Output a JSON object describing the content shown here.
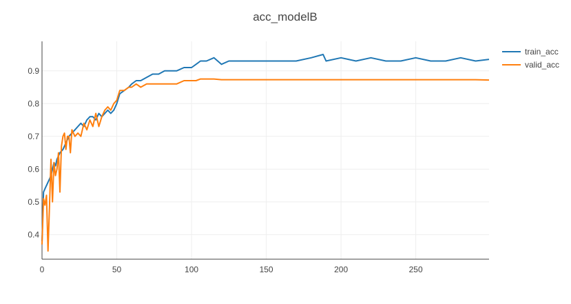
{
  "chart_data": {
    "type": "line",
    "title": "acc_modelB",
    "xlabel": "",
    "ylabel": "",
    "xlim": [
      0,
      299
    ],
    "ylim": [
      0.325,
      0.99
    ],
    "x_ticks": [
      0,
      50,
      100,
      150,
      200,
      250
    ],
    "y_ticks": [
      0.4,
      0.5,
      0.6,
      0.7,
      0.8,
      0.9
    ],
    "grid": true,
    "legend_position": "top-right",
    "series": [
      {
        "name": "train_acc",
        "color": "#1f77b4",
        "x": [
          0,
          1,
          2,
          3,
          4,
          5,
          6,
          7,
          8,
          9,
          10,
          12,
          14,
          16,
          18,
          20,
          22,
          24,
          26,
          28,
          30,
          32,
          34,
          36,
          38,
          40,
          42,
          44,
          46,
          48,
          50,
          52,
          55,
          58,
          60,
          63,
          66,
          70,
          74,
          78,
          82,
          86,
          90,
          95,
          100,
          103,
          106,
          110,
          115,
          120,
          125,
          130,
          140,
          150,
          160,
          170,
          180,
          188,
          190,
          200,
          210,
          220,
          230,
          240,
          250,
          260,
          270,
          280,
          290,
          299
        ],
        "y": [
          0.38,
          0.53,
          0.54,
          0.55,
          0.56,
          0.57,
          0.58,
          0.6,
          0.62,
          0.61,
          0.63,
          0.65,
          0.66,
          0.68,
          0.7,
          0.71,
          0.72,
          0.73,
          0.74,
          0.73,
          0.75,
          0.76,
          0.76,
          0.75,
          0.77,
          0.76,
          0.77,
          0.78,
          0.77,
          0.78,
          0.8,
          0.83,
          0.84,
          0.85,
          0.86,
          0.87,
          0.87,
          0.88,
          0.89,
          0.89,
          0.9,
          0.9,
          0.9,
          0.91,
          0.91,
          0.92,
          0.93,
          0.93,
          0.94,
          0.92,
          0.93,
          0.93,
          0.93,
          0.93,
          0.93,
          0.93,
          0.94,
          0.95,
          0.93,
          0.94,
          0.93,
          0.94,
          0.93,
          0.93,
          0.94,
          0.93,
          0.93,
          0.94,
          0.93,
          0.935
        ]
      },
      {
        "name": "valid_acc",
        "color": "#ff7f0e",
        "x": [
          0,
          1,
          2,
          3,
          4,
          5,
          6,
          7,
          8,
          9,
          10,
          11,
          12,
          13,
          14,
          15,
          16,
          17,
          18,
          19,
          20,
          22,
          24,
          26,
          28,
          30,
          32,
          34,
          36,
          38,
          40,
          42,
          44,
          46,
          48,
          50,
          52,
          55,
          58,
          60,
          63,
          66,
          70,
          74,
          78,
          82,
          86,
          90,
          95,
          100,
          103,
          106,
          110,
          115,
          120,
          130,
          140,
          150,
          160,
          170,
          180,
          190,
          200,
          210,
          220,
          230,
          240,
          250,
          260,
          270,
          280,
          290,
          299
        ],
        "y": [
          0.37,
          0.51,
          0.49,
          0.52,
          0.35,
          0.49,
          0.63,
          0.5,
          0.62,
          0.58,
          0.6,
          0.65,
          0.53,
          0.67,
          0.7,
          0.71,
          0.66,
          0.7,
          0.7,
          0.65,
          0.72,
          0.7,
          0.71,
          0.7,
          0.74,
          0.72,
          0.75,
          0.73,
          0.77,
          0.73,
          0.76,
          0.78,
          0.79,
          0.78,
          0.8,
          0.81,
          0.84,
          0.84,
          0.85,
          0.85,
          0.86,
          0.85,
          0.86,
          0.86,
          0.86,
          0.86,
          0.86,
          0.86,
          0.87,
          0.87,
          0.87,
          0.875,
          0.875,
          0.875,
          0.873,
          0.873,
          0.873,
          0.873,
          0.873,
          0.873,
          0.873,
          0.873,
          0.873,
          0.873,
          0.873,
          0.873,
          0.873,
          0.873,
          0.873,
          0.873,
          0.873,
          0.873,
          0.872
        ]
      }
    ]
  }
}
